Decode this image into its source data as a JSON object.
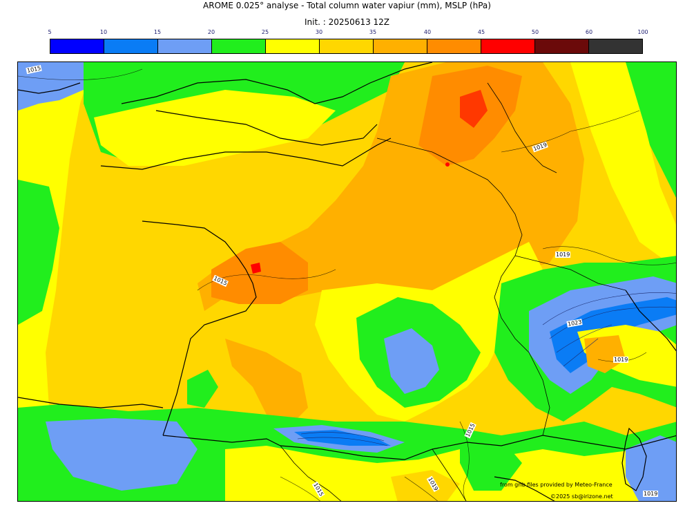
{
  "title": {
    "line1": "AROME 0.025° analyse - Total column water vapiur (mm), MSLP (hPa)",
    "line2": "Init. : 20250613 12Z"
  },
  "colorbar": {
    "ticks": [
      "5",
      "10",
      "15",
      "20",
      "25",
      "30",
      "35",
      "40",
      "45",
      "50",
      "60",
      "100"
    ],
    "colors": [
      "#0000ff",
      "#0a7cf5",
      "#6e9ef5",
      "#21ee1d",
      "#ffff00",
      "#ffd700",
      "#ffb000",
      "#ff8c00",
      "#ff0000",
      "#6b0a0a",
      "#333333"
    ]
  },
  "isobar_labels": [
    "1015",
    "1019",
    "1019",
    "1015",
    "1023",
    "1019",
    "1015",
    "1015",
    "1019",
    "1019"
  ],
  "credits": {
    "source": "from grib files provided by Meteo-France",
    "copyright": "©2025 sb@irizone.net"
  }
}
